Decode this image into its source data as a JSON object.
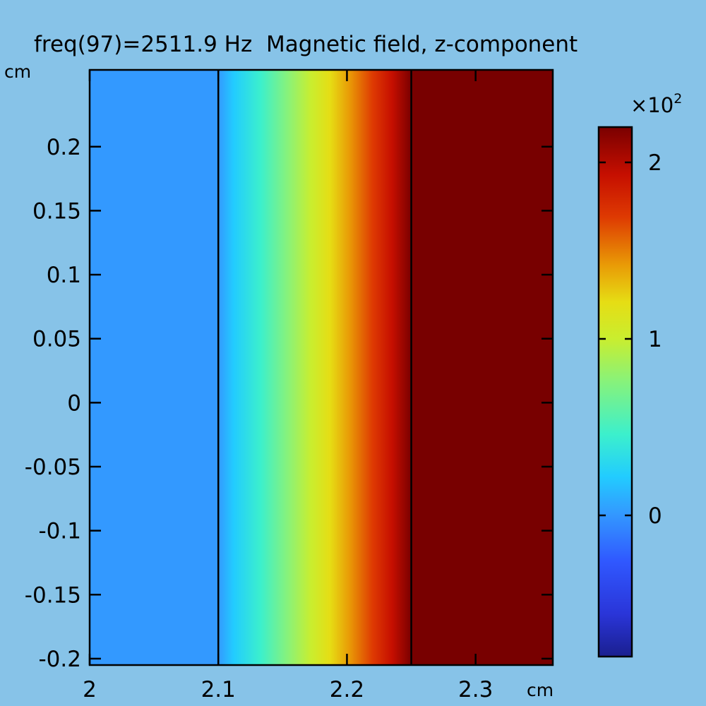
{
  "chart_data": {
    "type": "heatmap",
    "title": "freq(97)=2511.9 Hz  Magnetic field, z-component",
    "x_unit": "cm",
    "y_unit": "cm",
    "xlim": [
      2.0,
      2.36
    ],
    "ylim": [
      -0.205,
      0.26
    ],
    "x_ticks": [
      2,
      2.1,
      2.2,
      2.3
    ],
    "x_tick_labels": [
      "2",
      "2.1",
      "2.2",
      "2.3"
    ],
    "y_ticks": [
      0.2,
      0.15,
      0.1,
      0.05,
      0,
      -0.05,
      -0.1,
      -0.15,
      -0.2
    ],
    "y_tick_labels": [
      "0.2",
      "0.15",
      "0.1",
      "0.05",
      "0",
      "-0.05",
      "-0.1",
      "-0.15",
      "-0.2"
    ],
    "domain_boundaries_x": [
      2.1,
      2.25
    ],
    "field_profile": {
      "description_axis": "x",
      "x": [
        2.0,
        2.1,
        2.15,
        2.2,
        2.25,
        2.36
      ],
      "values": [
        0,
        0,
        100,
        170,
        226,
        226
      ]
    },
    "colorbar": {
      "multiplier_label": "×10",
      "multiplier_exponent": "2",
      "range": [
        -0.8,
        2.2
      ],
      "ticks": [
        0,
        1,
        2
      ],
      "tick_labels": [
        "0",
        "1",
        "2"
      ],
      "colormap": "rainbow"
    },
    "colors": {
      "background": "#87c3e8",
      "left_region": "#3399ff",
      "right_region": "#780000"
    }
  }
}
